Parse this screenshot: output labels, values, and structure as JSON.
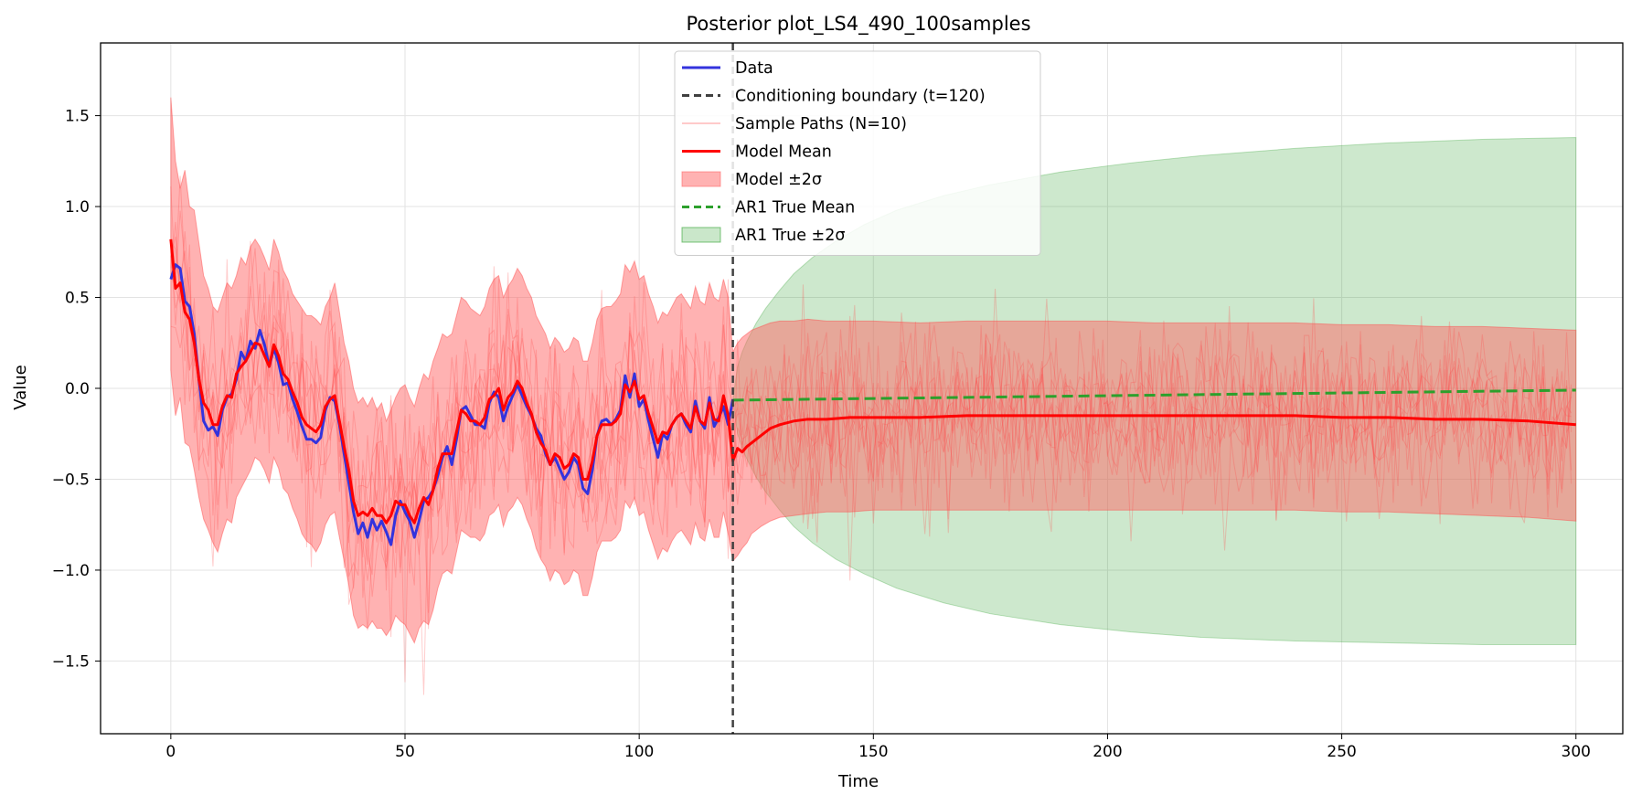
{
  "chart_data": {
    "type": "line",
    "title": "Posterior plot_LS4_490_100samples",
    "xlabel": "Time",
    "ylabel": "Value",
    "xlim": [
      -15,
      310
    ],
    "ylim": [
      -1.9,
      1.9
    ],
    "xticks": [
      0,
      50,
      100,
      150,
      200,
      250,
      300
    ],
    "yticks": [
      -1.5,
      -1.0,
      -0.5,
      0.0,
      0.5,
      1.0,
      1.5
    ],
    "grid": true,
    "legend_position": "top-center",
    "boundary": {
      "x": 120,
      "color": "#404040"
    },
    "data_series": {
      "name": "Data",
      "color": "#3333dd",
      "x": [
        0,
        1,
        2,
        3,
        4,
        5,
        6,
        7,
        8,
        9,
        10,
        11,
        12,
        13,
        14,
        15,
        16,
        17,
        18,
        19,
        20,
        21,
        22,
        23,
        24,
        25,
        26,
        27,
        28,
        29,
        30,
        31,
        32,
        33,
        34,
        35,
        36,
        37,
        38,
        39,
        40,
        41,
        42,
        43,
        44,
        45,
        46,
        47,
        48,
        49,
        50,
        51,
        52,
        53,
        54,
        55,
        56,
        57,
        58,
        59,
        60,
        61,
        62,
        63,
        64,
        65,
        66,
        67,
        68,
        69,
        70,
        71,
        72,
        73,
        74,
        75,
        76,
        77,
        78,
        79,
        80,
        81,
        82,
        83,
        84,
        85,
        86,
        87,
        88,
        89,
        90,
        91,
        92,
        93,
        94,
        95,
        96,
        97,
        98,
        99,
        100,
        101,
        102,
        103,
        104,
        105,
        106,
        107,
        108,
        109,
        110,
        111,
        112,
        113,
        114,
        115,
        116,
        117,
        118,
        119,
        120
      ],
      "y": [
        0.6,
        0.68,
        0.66,
        0.48,
        0.45,
        0.3,
        0.05,
        -0.18,
        -0.23,
        -0.21,
        -0.26,
        -0.12,
        -0.05,
        -0.03,
        0.05,
        0.2,
        0.15,
        0.26,
        0.22,
        0.32,
        0.24,
        0.12,
        0.22,
        0.14,
        0.02,
        0.03,
        -0.06,
        -0.13,
        -0.21,
        -0.28,
        -0.28,
        -0.3,
        -0.27,
        -0.12,
        -0.05,
        -0.07,
        -0.2,
        -0.36,
        -0.52,
        -0.68,
        -0.8,
        -0.74,
        -0.82,
        -0.72,
        -0.78,
        -0.73,
        -0.79,
        -0.86,
        -0.7,
        -0.62,
        -0.68,
        -0.73,
        -0.82,
        -0.73,
        -0.62,
        -0.6,
        -0.56,
        -0.48,
        -0.38,
        -0.32,
        -0.42,
        -0.28,
        -0.12,
        -0.1,
        -0.15,
        -0.2,
        -0.2,
        -0.22,
        -0.08,
        -0.02,
        -0.05,
        -0.18,
        -0.1,
        -0.04,
        0.02,
        -0.04,
        -0.1,
        -0.15,
        -0.22,
        -0.26,
        -0.36,
        -0.42,
        -0.38,
        -0.44,
        -0.5,
        -0.46,
        -0.38,
        -0.42,
        -0.55,
        -0.58,
        -0.45,
        -0.26,
        -0.18,
        -0.17,
        -0.2,
        -0.17,
        -0.12,
        0.07,
        -0.05,
        0.08,
        -0.1,
        -0.06,
        -0.18,
        -0.28,
        -0.38,
        -0.25,
        -0.28,
        -0.2,
        -0.16,
        -0.14,
        -0.2,
        -0.24,
        -0.07,
        -0.18,
        -0.22,
        -0.05,
        -0.21,
        -0.16,
        -0.1,
        -0.2,
        -0.06
      ]
    },
    "model_mean": {
      "name": "Model Mean",
      "color": "#ff0000",
      "x": [
        0,
        1,
        2,
        3,
        4,
        5,
        6,
        7,
        8,
        9,
        10,
        11,
        12,
        13,
        14,
        15,
        16,
        17,
        18,
        19,
        20,
        21,
        22,
        23,
        24,
        25,
        26,
        27,
        28,
        29,
        30,
        31,
        32,
        33,
        34,
        35,
        36,
        37,
        38,
        39,
        40,
        41,
        42,
        43,
        44,
        45,
        46,
        47,
        48,
        49,
        50,
        51,
        52,
        53,
        54,
        55,
        56,
        57,
        58,
        59,
        60,
        61,
        62,
        63,
        64,
        65,
        66,
        67,
        68,
        69,
        70,
        71,
        72,
        73,
        74,
        75,
        76,
        77,
        78,
        79,
        80,
        81,
        82,
        83,
        84,
        85,
        86,
        87,
        88,
        89,
        90,
        91,
        92,
        93,
        94,
        95,
        96,
        97,
        98,
        99,
        100,
        101,
        102,
        103,
        104,
        105,
        106,
        107,
        108,
        109,
        110,
        111,
        112,
        113,
        114,
        115,
        116,
        117,
        118,
        119,
        120,
        121,
        122,
        123,
        124,
        126,
        128,
        130,
        133,
        136,
        140,
        145,
        150,
        160,
        170,
        180,
        190,
        200,
        210,
        220,
        230,
        240,
        250,
        260,
        270,
        280,
        290,
        300
      ],
      "y": [
        0.82,
        0.55,
        0.58,
        0.42,
        0.38,
        0.25,
        0.05,
        -0.08,
        -0.12,
        -0.2,
        -0.2,
        -0.1,
        -0.04,
        -0.05,
        0.08,
        0.12,
        0.15,
        0.2,
        0.25,
        0.24,
        0.18,
        0.12,
        0.24,
        0.18,
        0.08,
        0.05,
        -0.02,
        -0.08,
        -0.16,
        -0.2,
        -0.22,
        -0.24,
        -0.2,
        -0.1,
        -0.06,
        -0.04,
        -0.18,
        -0.32,
        -0.45,
        -0.62,
        -0.7,
        -0.68,
        -0.7,
        -0.66,
        -0.7,
        -0.7,
        -0.74,
        -0.7,
        -0.62,
        -0.64,
        -0.64,
        -0.7,
        -0.74,
        -0.66,
        -0.6,
        -0.64,
        -0.56,
        -0.44,
        -0.36,
        -0.36,
        -0.36,
        -0.24,
        -0.12,
        -0.14,
        -0.18,
        -0.18,
        -0.2,
        -0.16,
        -0.06,
        -0.04,
        0.0,
        -0.12,
        -0.05,
        -0.02,
        0.04,
        0.0,
        -0.08,
        -0.14,
        -0.24,
        -0.3,
        -0.34,
        -0.42,
        -0.36,
        -0.38,
        -0.44,
        -0.42,
        -0.36,
        -0.38,
        -0.5,
        -0.5,
        -0.4,
        -0.26,
        -0.2,
        -0.2,
        -0.2,
        -0.18,
        -0.14,
        0.02,
        -0.02,
        0.04,
        -0.06,
        -0.04,
        -0.14,
        -0.22,
        -0.3,
        -0.24,
        -0.25,
        -0.2,
        -0.16,
        -0.14,
        -0.18,
        -0.22,
        -0.1,
        -0.18,
        -0.2,
        -0.08,
        -0.17,
        -0.18,
        -0.04,
        -0.15,
        -0.4,
        -0.33,
        -0.35,
        -0.32,
        -0.3,
        -0.26,
        -0.22,
        -0.2,
        -0.18,
        -0.17,
        -0.17,
        -0.16,
        -0.16,
        -0.16,
        -0.15,
        -0.15,
        -0.15,
        -0.15,
        -0.15,
        -0.15,
        -0.15,
        -0.15,
        -0.16,
        -0.16,
        -0.17,
        -0.17,
        -0.18,
        -0.2
      ]
    },
    "model_band": {
      "name": "Model ±2σ",
      "color": "#ff6666",
      "x": [
        0,
        1,
        2,
        3,
        4,
        5,
        6,
        7,
        8,
        9,
        10,
        11,
        12,
        13,
        14,
        15,
        16,
        17,
        18,
        19,
        20,
        21,
        22,
        23,
        24,
        25,
        26,
        27,
        28,
        29,
        30,
        31,
        32,
        33,
        34,
        35,
        36,
        37,
        38,
        39,
        40,
        41,
        42,
        43,
        44,
        45,
        46,
        47,
        48,
        49,
        50,
        51,
        52,
        53,
        54,
        55,
        56,
        57,
        58,
        59,
        60,
        61,
        62,
        63,
        64,
        65,
        66,
        67,
        68,
        69,
        70,
        71,
        72,
        73,
        74,
        75,
        76,
        77,
        78,
        79,
        80,
        81,
        82,
        83,
        84,
        85,
        86,
        87,
        88,
        89,
        90,
        91,
        92,
        93,
        94,
        95,
        96,
        97,
        98,
        99,
        100,
        101,
        102,
        103,
        104,
        105,
        106,
        107,
        108,
        109,
        110,
        111,
        112,
        113,
        114,
        115,
        116,
        117,
        118,
        119,
        120,
        121,
        122,
        123,
        124,
        126,
        128,
        130,
        133,
        136,
        140,
        145,
        150,
        160,
        170,
        180,
        190,
        200,
        210,
        220,
        230,
        240,
        250,
        260,
        270,
        280,
        290,
        300
      ],
      "upper": [
        1.6,
        1.25,
        1.1,
        1.2,
        1.0,
        0.98,
        0.8,
        0.62,
        0.55,
        0.45,
        0.42,
        0.5,
        0.58,
        0.55,
        0.62,
        0.72,
        0.68,
        0.78,
        0.82,
        0.78,
        0.72,
        0.65,
        0.82,
        0.75,
        0.65,
        0.6,
        0.52,
        0.48,
        0.44,
        0.4,
        0.4,
        0.38,
        0.35,
        0.45,
        0.5,
        0.58,
        0.42,
        0.25,
        0.15,
        0.0,
        -0.08,
        -0.05,
        -0.1,
        -0.05,
        -0.12,
        -0.08,
        -0.18,
        -0.12,
        -0.05,
        0.0,
        0.02,
        -0.05,
        -0.1,
        0.0,
        0.08,
        0.05,
        0.15,
        0.22,
        0.3,
        0.28,
        0.3,
        0.4,
        0.5,
        0.48,
        0.44,
        0.42,
        0.4,
        0.45,
        0.55,
        0.6,
        0.62,
        0.5,
        0.56,
        0.6,
        0.66,
        0.62,
        0.55,
        0.5,
        0.4,
        0.35,
        0.3,
        0.22,
        0.28,
        0.25,
        0.2,
        0.22,
        0.28,
        0.26,
        0.15,
        0.15,
        0.25,
        0.38,
        0.44,
        0.45,
        0.45,
        0.48,
        0.52,
        0.68,
        0.64,
        0.7,
        0.6,
        0.62,
        0.52,
        0.45,
        0.36,
        0.42,
        0.4,
        0.45,
        0.5,
        0.52,
        0.48,
        0.44,
        0.56,
        0.48,
        0.46,
        0.58,
        0.5,
        0.48,
        0.6,
        0.5,
        0.2,
        0.25,
        0.28,
        0.3,
        0.32,
        0.34,
        0.36,
        0.37,
        0.37,
        0.38,
        0.37,
        0.37,
        0.37,
        0.36,
        0.37,
        0.37,
        0.37,
        0.37,
        0.36,
        0.36,
        0.36,
        0.36,
        0.35,
        0.35,
        0.34,
        0.34,
        0.33,
        0.32
      ],
      "lower": [
        0.1,
        -0.15,
        -0.05,
        -0.3,
        -0.32,
        -0.45,
        -0.6,
        -0.72,
        -0.78,
        -0.85,
        -0.9,
        -0.8,
        -0.72,
        -0.74,
        -0.6,
        -0.55,
        -0.5,
        -0.45,
        -0.38,
        -0.4,
        -0.45,
        -0.52,
        -0.38,
        -0.44,
        -0.55,
        -0.58,
        -0.66,
        -0.72,
        -0.8,
        -0.84,
        -0.86,
        -0.9,
        -0.85,
        -0.75,
        -0.7,
        -0.68,
        -0.82,
        -0.95,
        -1.08,
        -1.25,
        -1.32,
        -1.3,
        -1.32,
        -1.28,
        -1.32,
        -1.32,
        -1.36,
        -1.32,
        -1.25,
        -1.28,
        -1.3,
        -1.35,
        -1.4,
        -1.32,
        -1.28,
        -1.3,
        -1.22,
        -1.1,
        -1.02,
        -1.0,
        -1.02,
        -0.9,
        -0.78,
        -0.8,
        -0.82,
        -0.82,
        -0.84,
        -0.8,
        -0.7,
        -0.68,
        -0.64,
        -0.76,
        -0.68,
        -0.65,
        -0.6,
        -0.64,
        -0.72,
        -0.78,
        -0.88,
        -0.94,
        -0.98,
        -1.06,
        -1.0,
        -1.02,
        -1.08,
        -1.06,
        -1.0,
        -1.02,
        -1.14,
        -1.14,
        -1.04,
        -0.9,
        -0.84,
        -0.84,
        -0.84,
        -0.82,
        -0.78,
        -0.62,
        -0.66,
        -0.6,
        -0.7,
        -0.68,
        -0.78,
        -0.86,
        -0.94,
        -0.88,
        -0.9,
        -0.84,
        -0.8,
        -0.78,
        -0.82,
        -0.86,
        -0.74,
        -0.82,
        -0.84,
        -0.72,
        -0.82,
        -0.82,
        -0.68,
        -0.8,
        -0.95,
        -0.92,
        -0.88,
        -0.85,
        -0.8,
        -0.76,
        -0.73,
        -0.71,
        -0.7,
        -0.69,
        -0.68,
        -0.68,
        -0.67,
        -0.67,
        -0.67,
        -0.67,
        -0.67,
        -0.67,
        -0.67,
        -0.67,
        -0.67,
        -0.67,
        -0.68,
        -0.68,
        -0.69,
        -0.7,
        -0.71,
        -0.73
      ]
    },
    "ar1_mean": {
      "name": "AR1 True Mean",
      "color": "#2ca02c",
      "x": [
        120,
        300
      ],
      "y": [
        -0.065,
        -0.01
      ]
    },
    "ar1_band": {
      "name": "AR1 True ±2σ",
      "color": "#2ca02c",
      "x": [
        120,
        121,
        122,
        123,
        125,
        127,
        130,
        133,
        137,
        142,
        148,
        155,
        165,
        175,
        190,
        205,
        220,
        240,
        260,
        280,
        300
      ],
      "upper": [
        -0.065,
        0.12,
        0.2,
        0.26,
        0.36,
        0.44,
        0.54,
        0.63,
        0.72,
        0.81,
        0.9,
        0.98,
        1.06,
        1.12,
        1.19,
        1.24,
        1.28,
        1.32,
        1.35,
        1.37,
        1.38
      ],
      "lower": [
        -0.065,
        -0.25,
        -0.33,
        -0.39,
        -0.49,
        -0.57,
        -0.67,
        -0.76,
        -0.85,
        -0.94,
        -1.02,
        -1.1,
        -1.18,
        -1.24,
        -1.3,
        -1.34,
        -1.37,
        -1.39,
        -1.4,
        -1.41,
        -1.41
      ]
    },
    "sample_paths": {
      "name": "Sample Paths (N=10)",
      "color": "#ff6666",
      "count": 10
    },
    "legend": [
      {
        "key": "data",
        "label": "Data",
        "style": "line",
        "color": "#3333dd"
      },
      {
        "key": "boundary",
        "label": "Conditioning boundary (t=120)",
        "style": "dash",
        "color": "#404040"
      },
      {
        "key": "samples",
        "label": "Sample Paths (N=10)",
        "style": "thin",
        "color": "#ffaaaa"
      },
      {
        "key": "model-mean",
        "label": "Model Mean",
        "style": "line",
        "color": "#ff0000"
      },
      {
        "key": "model-band",
        "label": "Model ±2σ",
        "style": "patch",
        "color": "#ff6666"
      },
      {
        "key": "ar1-mean",
        "label": "AR1 True Mean",
        "style": "dash",
        "color": "#2ca02c"
      },
      {
        "key": "ar1-band",
        "label": "AR1 True ±2σ",
        "style": "patch",
        "color": "#2ca02c"
      }
    ]
  }
}
